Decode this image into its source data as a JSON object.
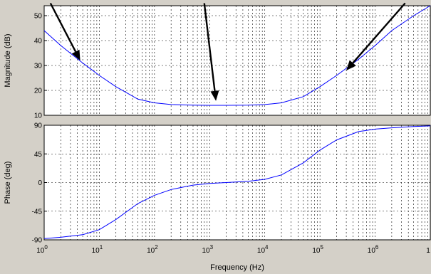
{
  "colors": {
    "background": "#d4d0c8",
    "plot_bg": "#ffffff",
    "series": "#0000ff",
    "grid": "#000000",
    "arrow": "#000000"
  },
  "xlabel": "Frequency  (Hz)",
  "chart_data": [
    {
      "type": "line",
      "panel": "magnitude",
      "ylabel": "Magnitude (dB)",
      "xscale": "log",
      "xlim": [
        1,
        10000000
      ],
      "ylim": [
        10,
        54
      ],
      "yticks": [
        "10",
        "20",
        "30",
        "40",
        "50"
      ],
      "xticks": [
        {
          "base": "10",
          "exp": "0"
        },
        {
          "base": "10",
          "exp": "1"
        },
        {
          "base": "10",
          "exp": "2"
        },
        {
          "base": "10",
          "exp": "3"
        },
        {
          "base": "10",
          "exp": "4"
        },
        {
          "base": "10",
          "exp": "5"
        },
        {
          "base": "10",
          "exp": "6"
        },
        {
          "base": "1",
          "exp": ""
        }
      ],
      "grid": true,
      "series": [
        {
          "x": [
            1,
            2,
            5,
            10,
            20,
            50,
            100,
            200,
            500,
            1000,
            2000,
            5000,
            10000,
            20000,
            50000,
            100000,
            200000,
            500000,
            1000000,
            2000000,
            5000000,
            10000000
          ],
          "y": [
            44,
            38,
            31,
            26,
            21.5,
            16.5,
            15,
            14.3,
            14.1,
            14,
            14,
            14.1,
            14.3,
            15,
            17.5,
            21.5,
            26,
            32.5,
            38,
            44,
            50,
            54
          ]
        }
      ],
      "annotations": [
        {
          "type": "arrow",
          "tail": [
            1.3,
            55
          ],
          "head": [
            4.5,
            32
          ]
        },
        {
          "type": "arrow",
          "tail": [
            800,
            55
          ],
          "head": [
            1300,
            15.8
          ]
        },
        {
          "type": "arrow",
          "tail": [
            3500000,
            55
          ],
          "head": [
            300000,
            28
          ]
        }
      ]
    },
    {
      "type": "line",
      "panel": "phase",
      "ylabel": "Phase (deg)",
      "xscale": "log",
      "xlim": [
        1,
        10000000
      ],
      "ylim": [
        -90,
        90
      ],
      "yticks": [
        "-90",
        "-45",
        "0",
        "45",
        "90"
      ],
      "xticks": [
        {
          "base": "10",
          "exp": "0"
        },
        {
          "base": "10",
          "exp": "1"
        },
        {
          "base": "10",
          "exp": "2"
        },
        {
          "base": "10",
          "exp": "3"
        },
        {
          "base": "10",
          "exp": "4"
        },
        {
          "base": "10",
          "exp": "5"
        },
        {
          "base": "10",
          "exp": "6"
        },
        {
          "base": "1",
          "exp": ""
        }
      ],
      "grid": true,
      "series": [
        {
          "x": [
            1,
            2,
            5,
            10,
            20,
            50,
            100,
            200,
            500,
            1000,
            2000,
            5000,
            10000,
            20000,
            50000,
            100000,
            200000,
            500000,
            1000000,
            2000000,
            5000000,
            10000000
          ],
          "y": [
            -88,
            -86,
            -82,
            -74,
            -58,
            -33,
            -20,
            -11,
            -4,
            -1.5,
            0,
            2,
            5,
            12,
            31,
            51,
            67,
            80,
            84,
            86,
            88,
            89
          ]
        }
      ]
    }
  ]
}
